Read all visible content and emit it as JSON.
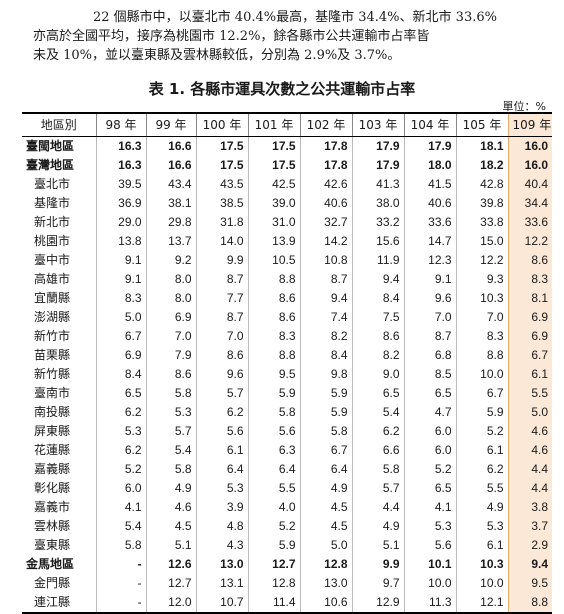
{
  "paragraph": {
    "line1": "22 個縣市中，以臺北市 40.4%最高，基隆市 34.4%、新北市 33.6%",
    "line2": "亦高於全國平均，接序為桃園市 12.2%，餘各縣市公共運輸市占率皆",
    "line3": "未及 10%，並以臺東縣及雲林縣較低，分別為 2.9%及 3.7%。"
  },
  "table": {
    "caption": "表 1. 各縣市運具次數之公共運輸市占率",
    "unit": "單位：%",
    "headers": [
      "地區別",
      "98 年",
      "99 年",
      "100 年",
      "101 年",
      "102 年",
      "103 年",
      "104 年",
      "105 年",
      "109 年"
    ],
    "rows": [
      {
        "region": "臺閩地區",
        "values": [
          "16.3",
          "16.6",
          "17.5",
          "17.5",
          "17.8",
          "17.9",
          "17.9",
          "18.1",
          "16.0"
        ],
        "bold": true,
        "indent": false
      },
      {
        "region": "臺灣地區",
        "values": [
          "16.3",
          "16.6",
          "17.5",
          "17.5",
          "17.8",
          "17.9",
          "18.0",
          "18.2",
          "16.0"
        ],
        "bold": true,
        "indent": false
      },
      {
        "region": "臺北市",
        "values": [
          "39.5",
          "43.4",
          "43.5",
          "42.5",
          "42.6",
          "41.3",
          "41.5",
          "42.8",
          "40.4"
        ],
        "bold": false,
        "indent": true
      },
      {
        "region": "基隆市",
        "values": [
          "36.9",
          "38.1",
          "38.5",
          "39.0",
          "40.6",
          "38.0",
          "40.6",
          "39.8",
          "34.4"
        ],
        "bold": false,
        "indent": true
      },
      {
        "region": "新北市",
        "values": [
          "29.0",
          "29.8",
          "31.8",
          "31.0",
          "32.7",
          "33.2",
          "33.6",
          "33.8",
          "33.6"
        ],
        "bold": false,
        "indent": true
      },
      {
        "region": "桃園市",
        "values": [
          "13.8",
          "13.7",
          "14.0",
          "13.9",
          "14.2",
          "15.6",
          "14.7",
          "15.0",
          "12.2"
        ],
        "bold": false,
        "indent": true
      },
      {
        "region": "臺中市",
        "values": [
          "9.1",
          "9.2",
          "9.9",
          "10.5",
          "10.8",
          "11.9",
          "12.3",
          "12.2",
          "8.6"
        ],
        "bold": false,
        "indent": true
      },
      {
        "region": "高雄市",
        "values": [
          "9.1",
          "8.0",
          "8.7",
          "8.8",
          "8.7",
          "9.4",
          "9.1",
          "9.3",
          "8.3"
        ],
        "bold": false,
        "indent": true
      },
      {
        "region": "宜蘭縣",
        "values": [
          "8.3",
          "8.0",
          "7.7",
          "8.6",
          "9.4",
          "8.4",
          "9.6",
          "10.3",
          "8.1"
        ],
        "bold": false,
        "indent": true
      },
      {
        "region": "澎湖縣",
        "values": [
          "5.0",
          "6.9",
          "8.7",
          "8.6",
          "7.4",
          "7.5",
          "7.0",
          "7.0",
          "6.9"
        ],
        "bold": false,
        "indent": true
      },
      {
        "region": "新竹市",
        "values": [
          "6.7",
          "7.0",
          "7.0",
          "8.3",
          "8.2",
          "8.6",
          "8.7",
          "8.3",
          "6.9"
        ],
        "bold": false,
        "indent": true
      },
      {
        "region": "苗栗縣",
        "values": [
          "6.9",
          "7.9",
          "8.6",
          "8.8",
          "8.4",
          "8.2",
          "6.8",
          "8.8",
          "6.7"
        ],
        "bold": false,
        "indent": true
      },
      {
        "region": "新竹縣",
        "values": [
          "8.4",
          "8.6",
          "9.6",
          "9.5",
          "9.8",
          "9.0",
          "8.5",
          "10.0",
          "6.1"
        ],
        "bold": false,
        "indent": true
      },
      {
        "region": "臺南市",
        "values": [
          "6.5",
          "5.8",
          "5.7",
          "5.9",
          "5.9",
          "6.5",
          "6.5",
          "6.7",
          "5.5"
        ],
        "bold": false,
        "indent": true
      },
      {
        "region": "南投縣",
        "values": [
          "6.2",
          "5.3",
          "6.2",
          "5.8",
          "5.9",
          "5.4",
          "4.7",
          "5.9",
          "5.0"
        ],
        "bold": false,
        "indent": true
      },
      {
        "region": "屏東縣",
        "values": [
          "5.3",
          "5.7",
          "5.6",
          "5.6",
          "5.8",
          "6.2",
          "6.0",
          "5.2",
          "4.6"
        ],
        "bold": false,
        "indent": true
      },
      {
        "region": "花蓮縣",
        "values": [
          "6.2",
          "5.4",
          "6.1",
          "6.3",
          "6.7",
          "6.6",
          "6.0",
          "6.1",
          "4.6"
        ],
        "bold": false,
        "indent": true
      },
      {
        "region": "嘉義縣",
        "values": [
          "5.2",
          "5.8",
          "6.4",
          "6.4",
          "6.4",
          "5.8",
          "5.2",
          "6.2",
          "4.4"
        ],
        "bold": false,
        "indent": true
      },
      {
        "region": "彰化縣",
        "values": [
          "6.0",
          "4.9",
          "5.3",
          "5.5",
          "4.9",
          "5.7",
          "6.5",
          "5.5",
          "4.4"
        ],
        "bold": false,
        "indent": true
      },
      {
        "region": "嘉義市",
        "values": [
          "4.1",
          "4.6",
          "3.9",
          "4.0",
          "4.5",
          "4.4",
          "4.1",
          "4.9",
          "3.8"
        ],
        "bold": false,
        "indent": true
      },
      {
        "region": "雲林縣",
        "values": [
          "5.4",
          "4.5",
          "4.8",
          "5.2",
          "4.5",
          "4.9",
          "5.3",
          "5.3",
          "3.7"
        ],
        "bold": false,
        "indent": true
      },
      {
        "region": "臺東縣",
        "values": [
          "5.8",
          "5.1",
          "4.3",
          "5.9",
          "5.0",
          "5.1",
          "5.6",
          "6.1",
          "2.9"
        ],
        "bold": false,
        "indent": true
      },
      {
        "region": "金馬地區",
        "values": [
          "-",
          "12.6",
          "13.0",
          "12.7",
          "12.8",
          "9.9",
          "10.1",
          "10.3",
          "9.4"
        ],
        "bold": true,
        "indent": false
      },
      {
        "region": "金門縣",
        "values": [
          "-",
          "12.7",
          "13.1",
          "12.8",
          "13.0",
          "9.7",
          "10.0",
          "10.0",
          "9.5"
        ],
        "bold": false,
        "indent": true
      },
      {
        "region": "連江縣",
        "values": [
          "-",
          "12.0",
          "10.7",
          "11.4",
          "10.6",
          "12.9",
          "11.3",
          "12.1",
          "8.8"
        ],
        "bold": false,
        "indent": true
      }
    ]
  },
  "colors": {
    "highlight_column": "#fbe8d6",
    "highlight_border": "#e9a96b"
  }
}
